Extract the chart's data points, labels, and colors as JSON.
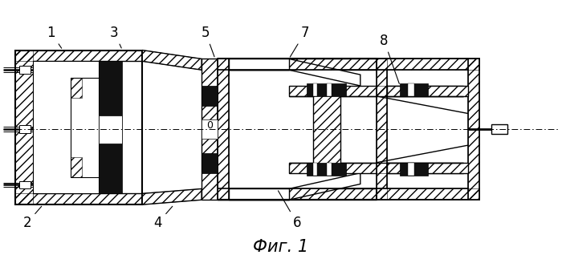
{
  "title": "Фиг. 1",
  "title_fontsize": 15,
  "background_color": "#ffffff",
  "fig_width": 7.0,
  "fig_height": 3.23,
  "dpi": 100
}
